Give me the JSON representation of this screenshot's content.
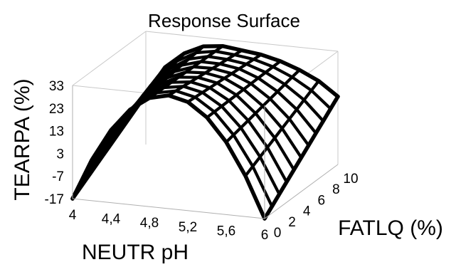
{
  "chart_data": {
    "type": "surface",
    "title": "Response Surface",
    "xlabel": "NEUTR pH",
    "ylabel": "FATLQ (%)",
    "zlabel": "TEARPA (%)",
    "x_ticks": [
      "4",
      "4,4",
      "4,8",
      "5,2",
      "5,6",
      "6"
    ],
    "y_ticks": [
      "0",
      "2",
      "4",
      "6",
      "8",
      "10"
    ],
    "z_ticks": [
      "33",
      "23",
      "13",
      "3",
      "-7",
      "-17"
    ],
    "xlim": [
      4,
      6
    ],
    "ylim": [
      0,
      10
    ],
    "zlim": [
      -17,
      33
    ],
    "grid": false,
    "surface": {
      "x": [
        4.0,
        4.2,
        4.4,
        4.6,
        4.8,
        5.0,
        5.2,
        5.4,
        5.6,
        5.8,
        6.0
      ],
      "y": [
        0,
        1,
        2,
        3,
        4,
        5,
        6,
        7,
        8,
        9,
        10
      ],
      "z_at_y0": [
        -17,
        1,
        15,
        25,
        31,
        33,
        31,
        25,
        15,
        1,
        -17
      ],
      "z_at_y10": [
        5,
        18,
        25,
        29,
        30,
        29,
        28,
        26,
        23,
        19,
        13
      ]
    }
  }
}
